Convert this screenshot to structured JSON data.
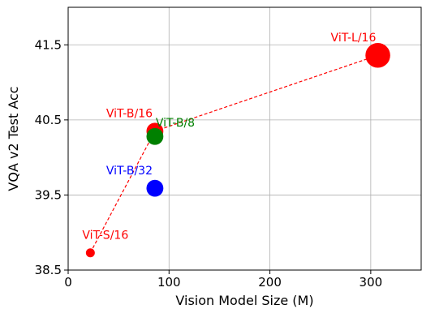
{
  "chart_data": {
    "type": "scatter",
    "xlabel": "Vision Model Size (M)",
    "ylabel": "VQA v2 Test Acc",
    "xlim": [
      0,
      350
    ],
    "ylim": [
      38.5,
      42.0
    ],
    "xticks": [
      0,
      100,
      200,
      300
    ],
    "xtick_labels": [
      "0",
      "100",
      "200",
      "300"
    ],
    "yticks": [
      38.5,
      39.5,
      40.5,
      41.5
    ],
    "ytick_labels": [
      "38.5",
      "39.5",
      "40.5",
      "41.5"
    ],
    "grid": true,
    "points": [
      {
        "label": "ViT-S/16",
        "x": 22,
        "y": 38.73,
        "color": "#ff0000"
      },
      {
        "label": "ViT-B/32",
        "x": 86,
        "y": 39.59,
        "color": "#0000ff"
      },
      {
        "label": "ViT-B/16",
        "x": 86,
        "y": 40.35,
        "color": "#ff0000"
      },
      {
        "label": "ViT-B/8",
        "x": 86,
        "y": 40.28,
        "color": "#008000"
      },
      {
        "label": "ViT-L/16",
        "x": 307,
        "y": 41.36,
        "color": "#ff0000"
      }
    ],
    "dashed_line": {
      "color": "#ff0000",
      "x": [
        22,
        86,
        307
      ],
      "y": [
        38.73,
        40.35,
        41.36
      ]
    }
  }
}
